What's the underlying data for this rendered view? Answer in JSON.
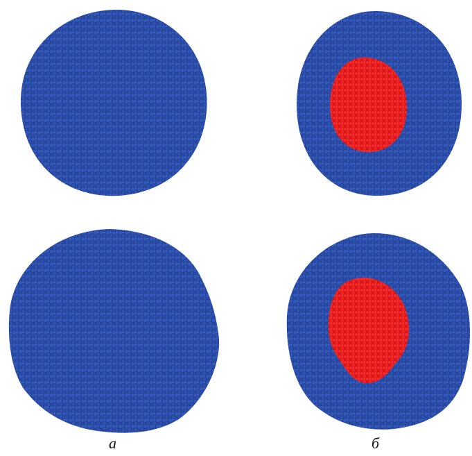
{
  "figure": {
    "panel_labels": {
      "left_column": "a",
      "right_column": "б"
    },
    "colors": {
      "shell_particles": "#2a4fae",
      "core_particles": "#ee2222",
      "background": "#ffffff"
    },
    "panels": [
      {
        "id": "top-left",
        "content": "all-blue-cluster",
        "has_core": false
      },
      {
        "id": "top-right",
        "content": "blue-shell-with-red-core",
        "has_core": true
      },
      {
        "id": "bottom-left",
        "content": "all-blue-cluster",
        "has_core": false
      },
      {
        "id": "bottom-right",
        "content": "blue-shell-with-red-core",
        "has_core": true
      }
    ]
  }
}
